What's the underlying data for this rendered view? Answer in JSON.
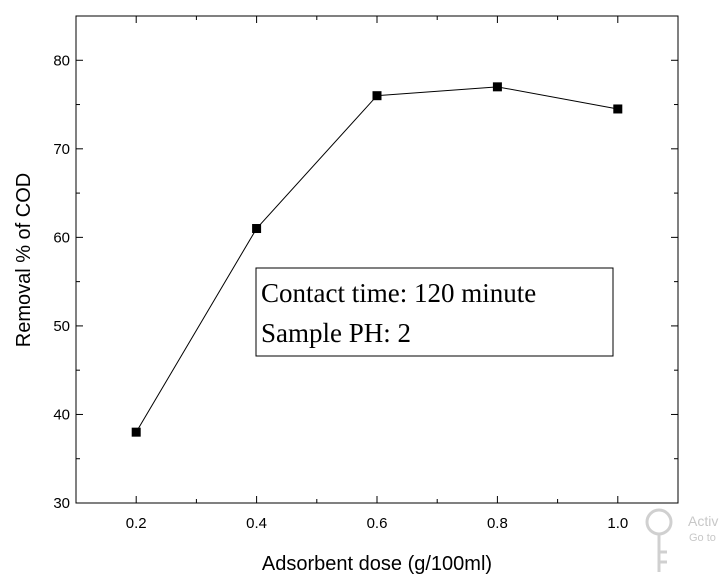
{
  "chart_data": {
    "type": "line",
    "title": "",
    "xlabel": "Adsorbent dose (g/100ml)",
    "ylabel": "Removal % of COD",
    "xlim": [
      0.1,
      1.1
    ],
    "ylim": [
      30,
      85
    ],
    "xticks": [
      0.2,
      0.4,
      0.6,
      0.8,
      1.0
    ],
    "xtick_labels": [
      "0.2",
      "0.4",
      "0.6",
      "0.8",
      "1.0"
    ],
    "yticks": [
      30,
      40,
      50,
      60,
      70,
      80
    ],
    "ytick_labels": [
      "30",
      "40",
      "50",
      "60",
      "70",
      "80"
    ],
    "grid": false,
    "legend": "none",
    "marker": "square",
    "color": "#000000",
    "series": [
      {
        "x": [
          0.2,
          0.4,
          0.6,
          0.8,
          1.0
        ],
        "values": [
          38,
          61,
          76,
          77,
          74.5
        ]
      }
    ],
    "annotation": {
      "lines": [
        "Contact time: 120 minute",
        "Sample PH: 2"
      ]
    }
  },
  "watermark": {
    "text": "Activ",
    "subtext": "Go to"
  }
}
